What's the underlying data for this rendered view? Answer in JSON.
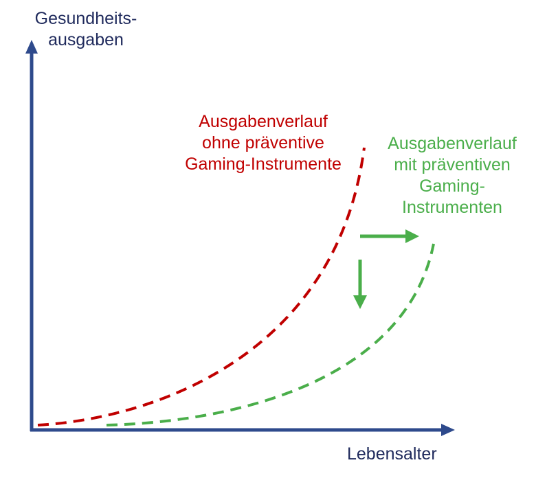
{
  "axes": {
    "y_label_lines": [
      "Gesundheits-",
      "ausgaben"
    ],
    "x_label": "Lebensalter",
    "color": "#2e4a8c",
    "text_color": "#1f2a5c"
  },
  "curves": {
    "without": {
      "label_lines": [
        "Ausgabenverlauf",
        "ohne präventive",
        "Gaming-Instrumente"
      ],
      "color": "#c00000",
      "style": "dashed"
    },
    "with": {
      "label_lines": [
        "Ausgabenverlauf",
        "mit präventiven",
        "Gaming-",
        "Instrumenten"
      ],
      "color": "#4aae4a",
      "style": "dashed"
    }
  },
  "shift_arrows": {
    "directions": [
      "right",
      "down"
    ],
    "color": "#4aae4a"
  }
}
